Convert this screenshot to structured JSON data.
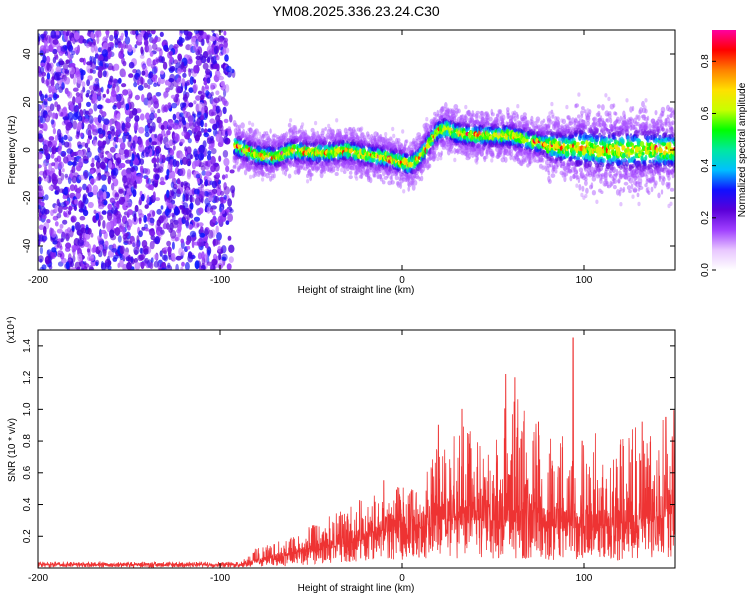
{
  "title": "YM08.2025.336.23.24.C30",
  "chart_data": [
    {
      "type": "heatmap",
      "title": "YM08.2025.336.23.24.C30",
      "xlabel": "Height of straight line (km)",
      "ylabel": "Frequency (Hz)",
      "xlim": [
        -200,
        150
      ],
      "ylim": [
        -50,
        50
      ],
      "x_ticks": [
        -200,
        -100,
        0,
        100
      ],
      "y_ticks": [
        -40,
        -20,
        0,
        20,
        40
      ],
      "noise_region_x": [
        -200,
        -92
      ],
      "ridge": {
        "x": [
          -92,
          -80,
          -70,
          -60,
          -50,
          -40,
          -30,
          -20,
          -10,
          0,
          5,
          10,
          15,
          20,
          25,
          30,
          40,
          50,
          60,
          70,
          80,
          90,
          100,
          110,
          120,
          130,
          140,
          150
        ],
        "y": [
          2,
          -2,
          -3,
          0,
          -1,
          -1,
          0,
          -2,
          -3,
          -5,
          -6,
          -3,
          3,
          8,
          9,
          7,
          6,
          6,
          6,
          4,
          2,
          1,
          1,
          0,
          0,
          0,
          0,
          0
        ]
      },
      "colorbar": {
        "label": "Normalized spectral amplitude",
        "ticks": [
          0.0,
          0.2,
          0.4,
          0.6,
          0.8
        ],
        "range": [
          0.0,
          0.92
        ],
        "colors": [
          "#ffffff",
          "#e8c6ff",
          "#a040ff",
          "#5a00d8",
          "#1010ff",
          "#00c0ff",
          "#00e8a0",
          "#00ff00",
          "#c8ff00",
          "#ffe000",
          "#ff8000",
          "#ff0000",
          "#ff00a0"
        ]
      }
    },
    {
      "type": "line",
      "xlabel": "Height of straight line (km)",
      "ylabel": "SNR (10 * v/v)",
      "y_multiplier": "(x10⁴)",
      "xlim": [
        -200,
        150
      ],
      "ylim": [
        0,
        1.5
      ],
      "x_ticks": [
        -200,
        -100,
        0,
        100
      ],
      "y_ticks": [
        0.2,
        0.4,
        0.6,
        0.8,
        1.0,
        1.2,
        1.4
      ],
      "color": "#ee3333",
      "envelope": {
        "x": [
          -200,
          -120,
          -90,
          -80,
          -60,
          -40,
          -20,
          0,
          10,
          20,
          30,
          40,
          50,
          60,
          70,
          80,
          90,
          100,
          110,
          120,
          130,
          140,
          150
        ],
        "base": [
          0.02,
          0.02,
          0.02,
          0.04,
          0.08,
          0.12,
          0.18,
          0.25,
          0.25,
          0.3,
          0.3,
          0.3,
          0.3,
          0.28,
          0.28,
          0.25,
          0.25,
          0.25,
          0.25,
          0.25,
          0.25,
          0.3,
          0.35
        ],
        "peak": [
          0.04,
          0.04,
          0.04,
          0.13,
          0.2,
          0.33,
          0.45,
          0.52,
          0.5,
          0.8,
          1.0,
          0.82,
          0.72,
          1.22,
          0.95,
          0.93,
          0.82,
          0.88,
          0.85,
          0.85,
          0.9,
          0.95,
          1.0
        ]
      },
      "spikes": [
        {
          "x": -10,
          "y": 0.55
        },
        {
          "x": 5,
          "y": 0.48
        },
        {
          "x": 20,
          "y": 0.9
        },
        {
          "x": 33,
          "y": 1.0
        },
        {
          "x": 57,
          "y": 1.22
        },
        {
          "x": 62,
          "y": 1.2
        },
        {
          "x": 75,
          "y": 0.92
        },
        {
          "x": 94,
          "y": 1.45
        },
        {
          "x": 99,
          "y": 0.8
        },
        {
          "x": 132,
          "y": 0.92
        },
        {
          "x": 145,
          "y": 0.95
        }
      ]
    }
  ]
}
